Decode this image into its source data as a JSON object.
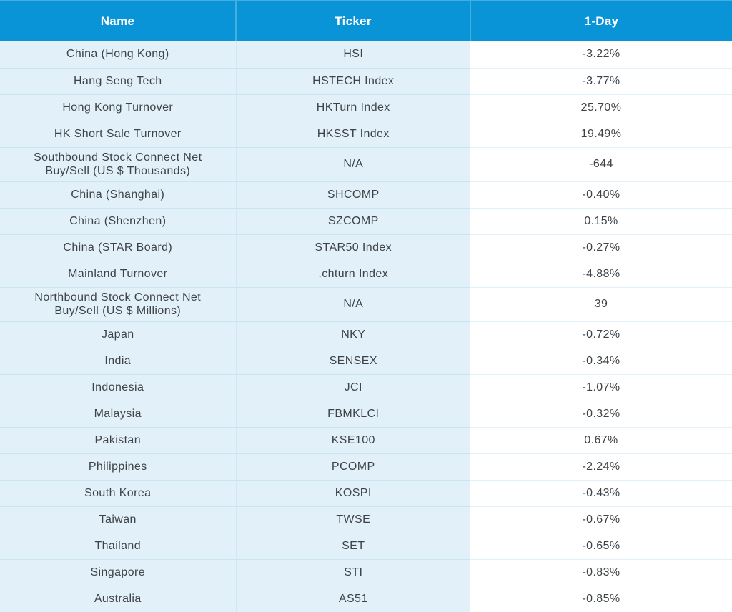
{
  "chart_data": {
    "type": "table",
    "columns": [
      "Name",
      "Ticker",
      "1-Day"
    ],
    "rows": [
      [
        "China (Hong Kong)",
        "HSI",
        "-3.22%"
      ],
      [
        "Hang Seng Tech",
        "HSTECH Index",
        "-3.77%"
      ],
      [
        "Hong Kong Turnover",
        "HKTurn Index",
        "25.70%"
      ],
      [
        "HK Short Sale Turnover",
        "HKSST Index",
        "19.49%"
      ],
      [
        "Southbound Stock Connect Net Buy/Sell (US $ Thousands)",
        "N/A",
        "-644"
      ],
      [
        "China (Shanghai)",
        "SHCOMP",
        "-0.40%"
      ],
      [
        "China (Shenzhen)",
        "SZCOMP",
        "0.15%"
      ],
      [
        "China (STAR Board)",
        "STAR50 Index",
        "-0.27%"
      ],
      [
        "Mainland Turnover",
        ".chturn Index",
        "-4.88%"
      ],
      [
        "Northbound Stock Connect Net Buy/Sell (US $ Millions)",
        "N/A",
        "39"
      ],
      [
        "Japan",
        "NKY",
        "-0.72%"
      ],
      [
        "India",
        "SENSEX",
        "-0.34%"
      ],
      [
        "Indonesia",
        "JCI",
        "-1.07%"
      ],
      [
        "Malaysia",
        "FBMKLCI",
        "-0.32%"
      ],
      [
        "Pakistan",
        "KSE100",
        "0.67%"
      ],
      [
        "Philippines",
        "PCOMP",
        "-2.24%"
      ],
      [
        "South Korea",
        "KOSPI",
        "-0.43%"
      ],
      [
        "Taiwan",
        "TWSE",
        "-0.67%"
      ],
      [
        "Thailand",
        "SET",
        "-0.65%"
      ],
      [
        "Singapore",
        "STI",
        "-0.83%"
      ],
      [
        "Australia",
        "AS51",
        "-0.85%"
      ]
    ],
    "layout": {
      "header_position": "top",
      "value_column_alignment": "center",
      "grid": true
    }
  },
  "colors": {
    "header_bg": "#0994d8",
    "header_text": "#ffffff",
    "header_divider": "#44ade1",
    "name_ticker_cell_bg": "#e2f1f9",
    "value_cell_bg": "#ffffff",
    "grid_line_blue": "#c9e5f3",
    "grid_line_white_col": "#e1f0f9",
    "body_text": "#3e4347",
    "bottom_bar": "#050505"
  }
}
